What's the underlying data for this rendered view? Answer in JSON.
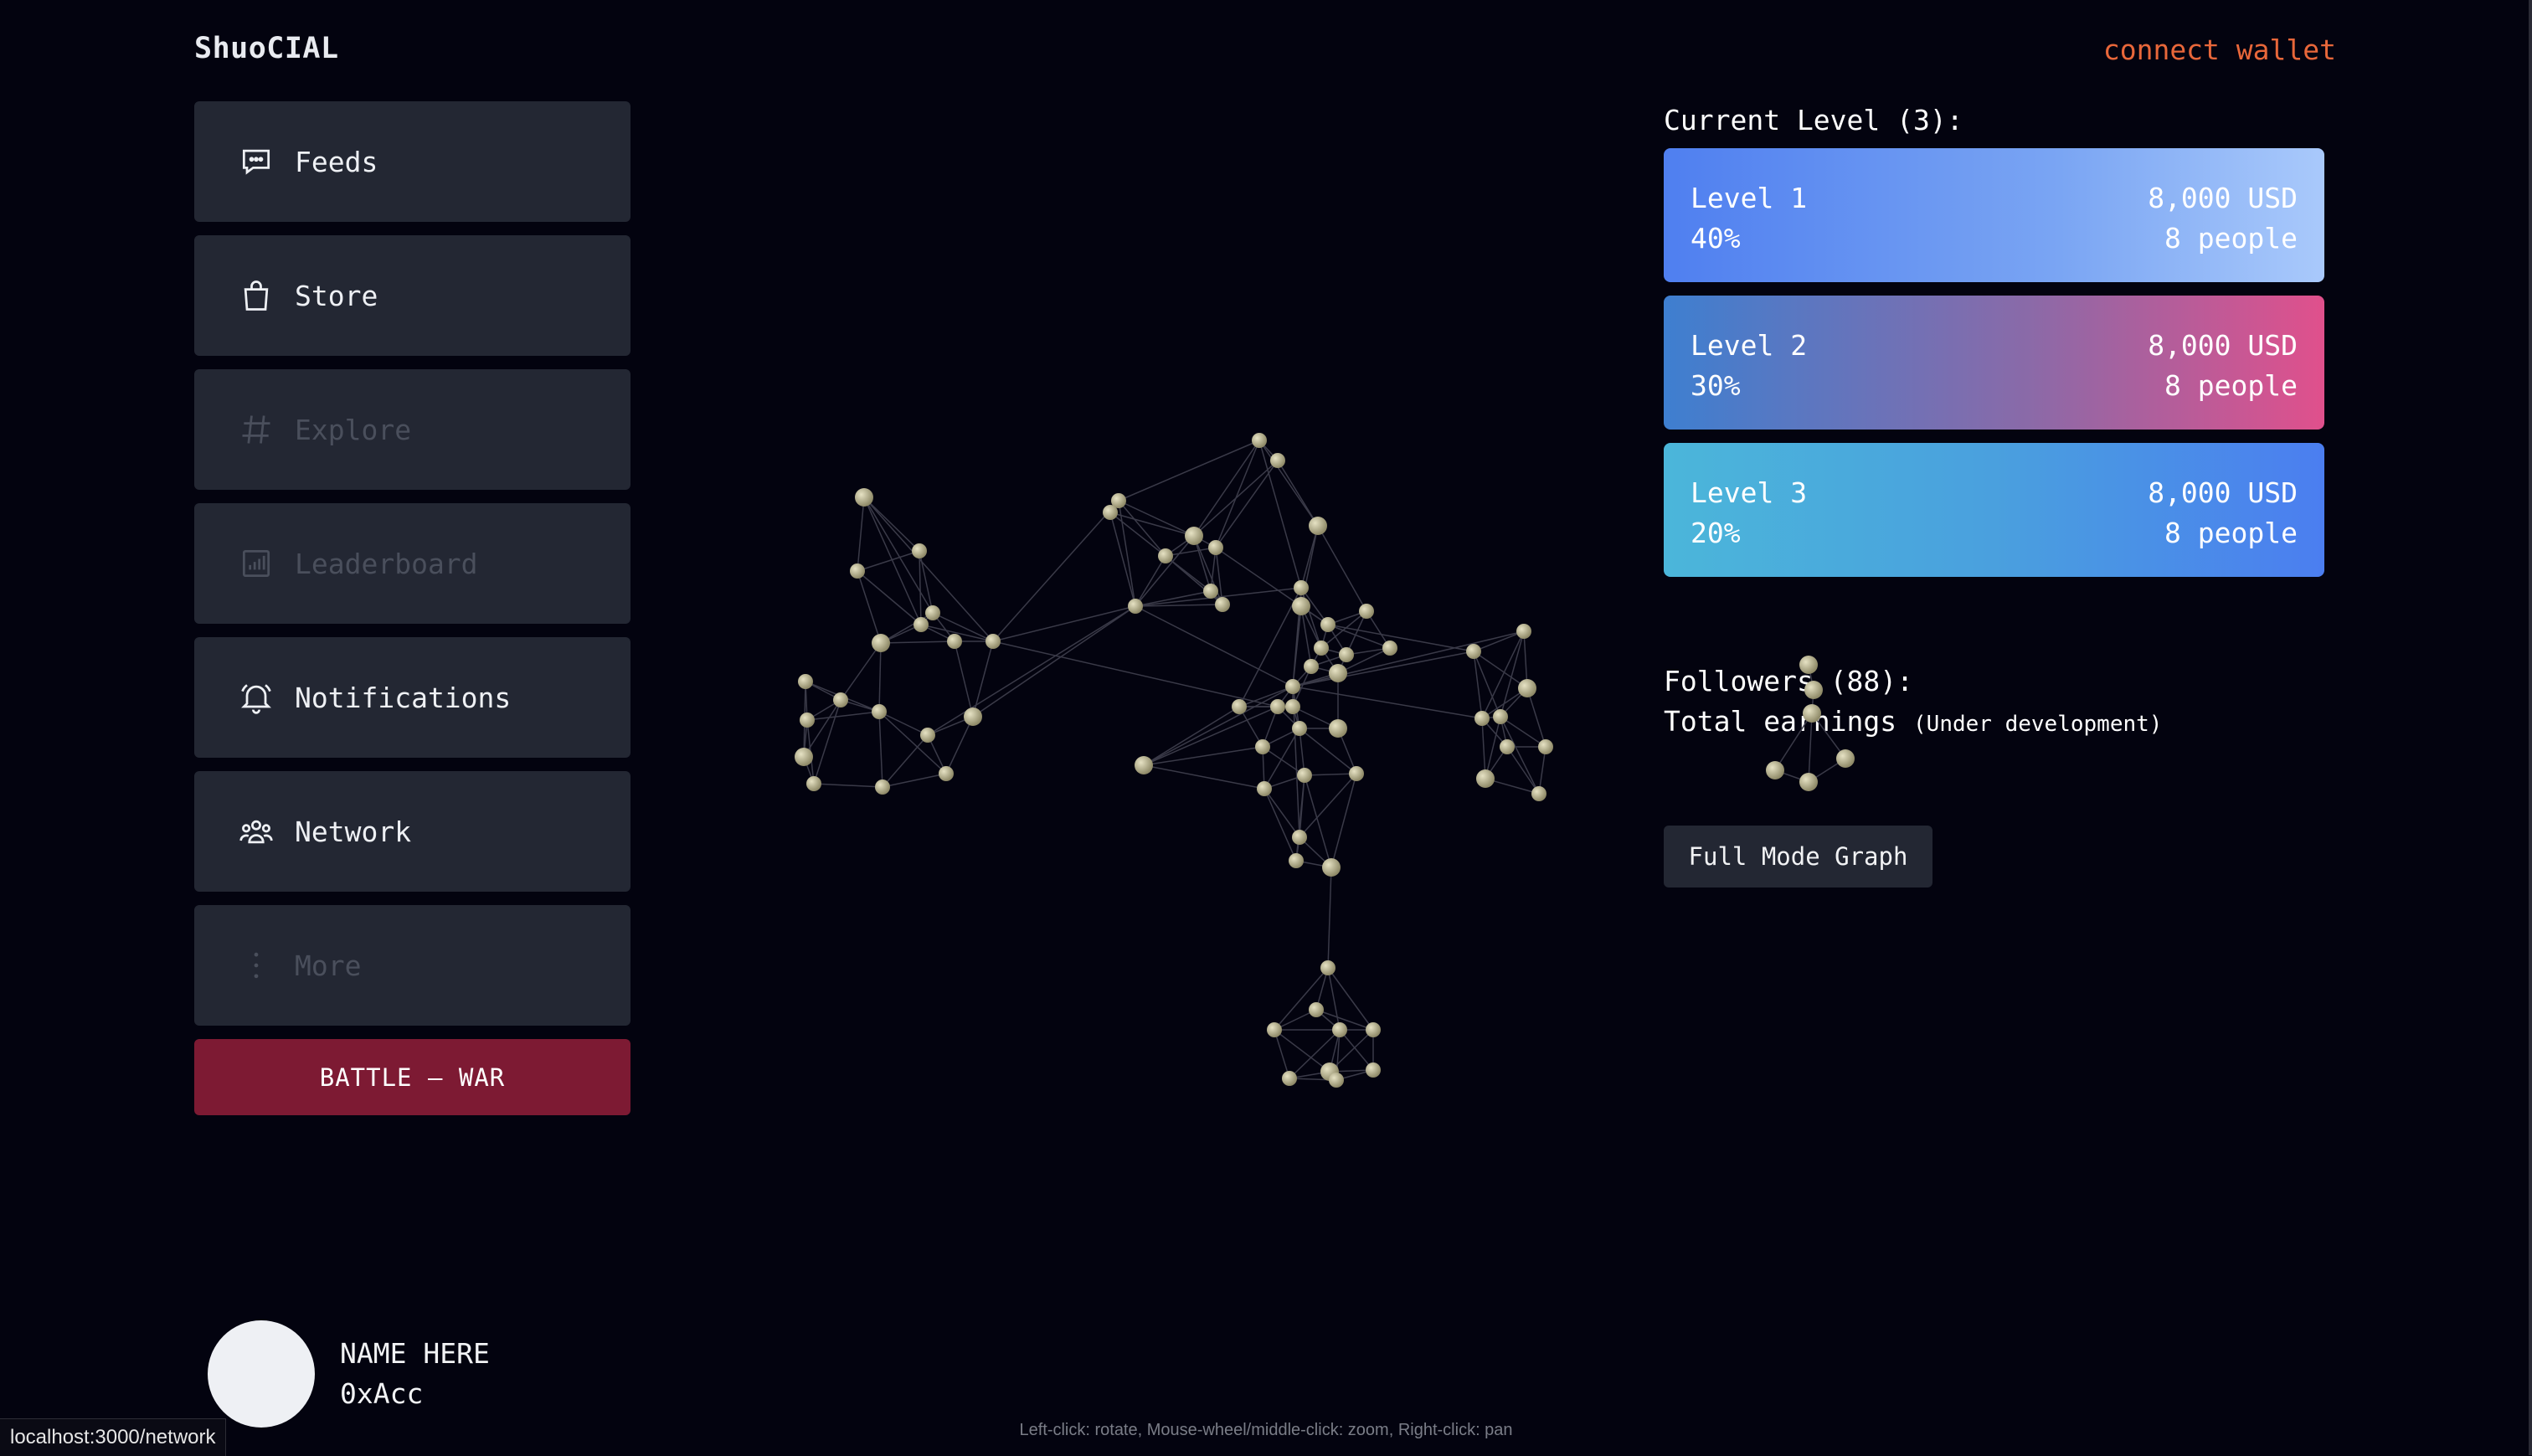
{
  "header": {
    "logo": "ShuoCIAL",
    "connect_wallet": "connect wallet"
  },
  "nav": {
    "items": [
      {
        "label": "Feeds",
        "icon": "chat-bubble-icon",
        "enabled": true
      },
      {
        "label": "Store",
        "icon": "shopping-bag-icon",
        "enabled": true
      },
      {
        "label": "Explore",
        "icon": "hashtag-icon",
        "enabled": false
      },
      {
        "label": "Leaderboard",
        "icon": "bar-chart-icon",
        "enabled": false
      },
      {
        "label": "Notifications",
        "icon": "bell-icon",
        "enabled": true
      },
      {
        "label": "Network",
        "icon": "people-group-icon",
        "enabled": true
      },
      {
        "label": "More",
        "icon": "vertical-dots-icon",
        "enabled": false
      }
    ],
    "battle": "BATTLE – WAR"
  },
  "user": {
    "name": "NAME HERE",
    "address": "0xAcc"
  },
  "levels": {
    "title": "Current Level (3):",
    "cards": [
      {
        "name": "Level 1",
        "percent": "40%",
        "amount": "8,000 USD",
        "people": "8 people"
      },
      {
        "name": "Level 2",
        "percent": "30%",
        "amount": "8,000 USD",
        "people": "8 people"
      },
      {
        "name": "Level 3",
        "percent": "20%",
        "amount": "8,000 USD",
        "people": "8 people"
      }
    ]
  },
  "stats": {
    "followers": "Followers (88):",
    "earnings": "Total earnings ",
    "earnings_note": "(Under development)"
  },
  "full_mode_button": "Full Mode Graph",
  "graph_hint": "Left-click: rotate, Mouse-wheel/middle-click: zoom, Right-click: pan",
  "status_url": "localhost:3000/network",
  "colors": {
    "node": "#b7b28f",
    "link": "#3a3a48",
    "accent": "#e8673a",
    "battle": "#7d1a33"
  }
}
